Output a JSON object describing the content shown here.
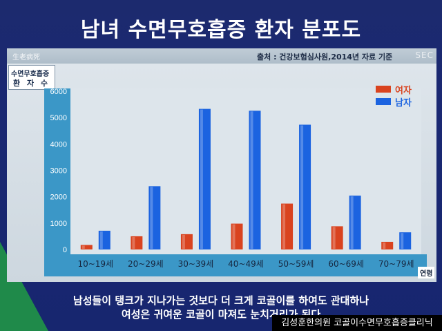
{
  "title": "남녀 수면무호흡증 환자 분포도",
  "panel": {
    "brand": "生老病死",
    "source": "출처 : 건강보험심사원,2014년 자료 기준",
    "corner_text": "SEC"
  },
  "chart_data": {
    "type": "bar",
    "title": "",
    "ylabel_line1": "수면무호흡증",
    "ylabel_line2": "환 자 수",
    "xlabel": "연령",
    "categories": [
      "10~19세",
      "20~29세",
      "30~39세",
      "40~49세",
      "50~59세",
      "60~69세",
      "70~79세"
    ],
    "series": [
      {
        "name": "여자",
        "color": "#d9431f",
        "values": [
          170,
          500,
          580,
          980,
          1740,
          880,
          290
        ]
      },
      {
        "name": "남자",
        "color": "#1b63e0",
        "values": [
          710,
          2400,
          5330,
          5260,
          4730,
          2040,
          650
        ]
      }
    ],
    "ylim": [
      0,
      6000
    ],
    "yticks": [
      0,
      1000,
      2000,
      3000,
      4000,
      5000,
      6000
    ],
    "grid": false,
    "legend_position": "top-right"
  },
  "captions": {
    "line1": "남성들이 탱크가 지나가는 것보다 더 크게 코골이를 하여도 관대하나",
    "line2": "여성은 귀여운 코골이 마져도 눈치거리가 된다"
  },
  "watermark": "김성훈한의원 코골이수면무호흡증클리닉"
}
